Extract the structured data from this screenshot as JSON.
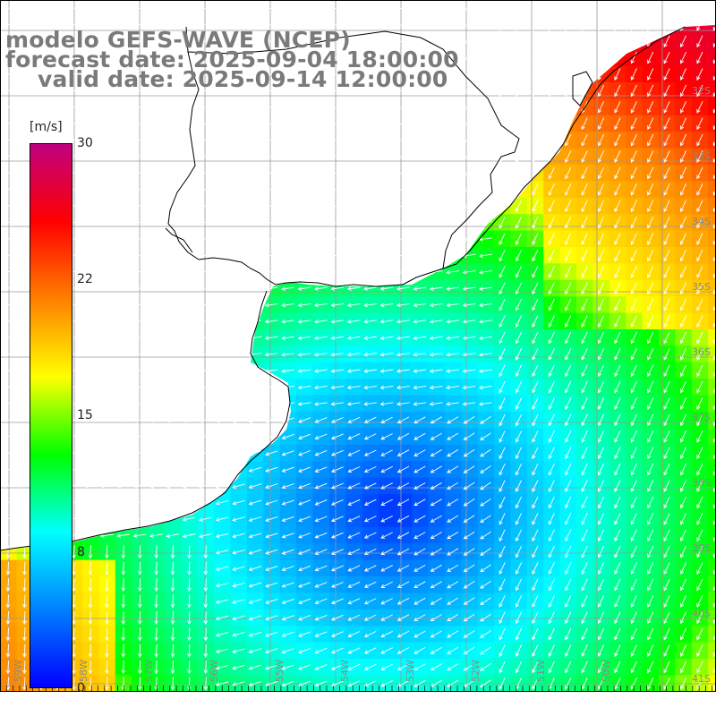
{
  "title": {
    "model": "modelo GEFS-WAVE (NCEP)",
    "forecast": "forecast date: 2025-09-04 18:00:00",
    "valid": "valid date: 2025-09-14 12:00:00"
  },
  "colorbar": {
    "unit": "[m/s]",
    "min": 0,
    "max": 30,
    "ticks": [
      {
        "value": 30,
        "label": "30"
      },
      {
        "value": 22,
        "label": "22"
      },
      {
        "value": 15,
        "label": "15"
      },
      {
        "value": 8,
        "label": "8"
      },
      {
        "value": 0,
        "label": "0"
      }
    ],
    "colors": [
      "#0000ff",
      "#0080ff",
      "#00ffff",
      "#00ff00",
      "#ffff00",
      "#ff8000",
      "#ff0000",
      "#c00080"
    ]
  },
  "map": {
    "variable": "wind speed and direction",
    "land_color": "#ffffff",
    "coast_color": "#000000",
    "grid_color": "#9a9a9a",
    "lat_labels": [
      "32S",
      "33S",
      "34S",
      "35S",
      "36S",
      "37S",
      "38S",
      "39S",
      "40S",
      "41S"
    ],
    "lon_labels": [
      "59W",
      "58W",
      "57W",
      "56W",
      "55W",
      "54W",
      "53W",
      "52W",
      "51W",
      "50W"
    ]
  }
}
